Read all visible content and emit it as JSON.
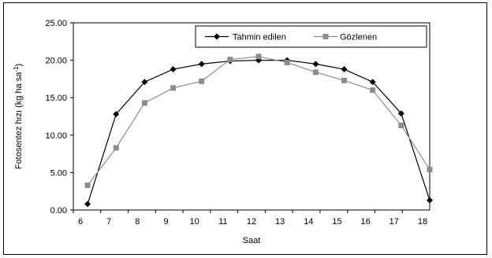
{
  "chart_data": {
    "type": "line",
    "xlabel": "Saat",
    "ylabel": "Fotosentez hızı (kg ha sa",
    "ylabel_superscript": "-1",
    "ylabel_close": ")",
    "xlim": [
      6,
      18
    ],
    "ylim": [
      0,
      25
    ],
    "x_ticks": [
      6,
      7,
      8,
      9,
      10,
      11,
      12,
      13,
      14,
      15,
      16,
      17,
      18
    ],
    "y_ticks": [
      "0.00",
      "5.00",
      "10.00",
      "15.00",
      "20.00",
      "25.00"
    ],
    "legend_position": "top-right",
    "grid": false,
    "series": [
      {
        "name": "Tahmin edilen",
        "marker": "diamond",
        "color": "#000000",
        "x": [
          6.25,
          7.25,
          8.25,
          9.25,
          10.25,
          11.25,
          12.25,
          13.25,
          14.25,
          15.25,
          16.25,
          17.25,
          18.25
        ],
        "values": [
          0.8,
          12.8,
          17.1,
          18.8,
          19.5,
          19.9,
          20.0,
          20.0,
          19.5,
          18.8,
          17.1,
          12.9,
          1.3
        ]
      },
      {
        "name": "Gözlenen",
        "marker": "square",
        "color": "#8c8c8c",
        "x": [
          6.25,
          7.25,
          8.25,
          9.25,
          10.25,
          11.25,
          12.25,
          13.25,
          14.25,
          15.25,
          16.25,
          17.25,
          18.25
        ],
        "values": [
          3.3,
          8.3,
          14.3,
          16.3,
          17.2,
          20.1,
          20.5,
          19.7,
          18.4,
          17.3,
          16.0,
          11.3,
          5.4
        ]
      }
    ]
  }
}
